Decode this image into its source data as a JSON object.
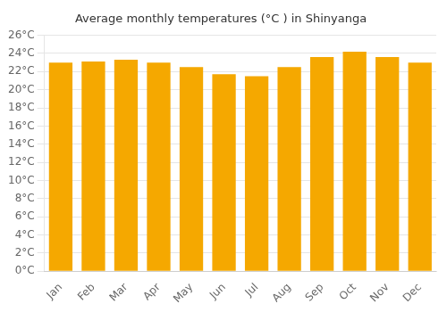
{
  "chart_data": {
    "type": "bar",
    "title": "Average monthly temperatures (°C ) in Shinyanga",
    "categories": [
      "Jan",
      "Feb",
      "Mar",
      "Apr",
      "May",
      "Jun",
      "Jul",
      "Aug",
      "Sep",
      "Oct",
      "Nov",
      "Dec"
    ],
    "values": [
      23.0,
      23.1,
      23.3,
      23.0,
      22.5,
      21.7,
      21.5,
      22.5,
      23.6,
      24.2,
      23.6,
      23.0
    ],
    "color": "#F5A800",
    "ylim": [
      0,
      26
    ],
    "yticks": [
      {
        "value": 0,
        "label": "0°C"
      },
      {
        "value": 2,
        "label": "2°C"
      },
      {
        "value": 4,
        "label": "4°C"
      },
      {
        "value": 6,
        "label": "6°C"
      },
      {
        "value": 8,
        "label": "8°C"
      },
      {
        "value": 10,
        "label": "10°C"
      },
      {
        "value": 12,
        "label": "12°C"
      },
      {
        "value": 14,
        "label": "14°C"
      },
      {
        "value": 16,
        "label": "16°C"
      },
      {
        "value": 18,
        "label": "18°C"
      },
      {
        "value": 20,
        "label": "20°C"
      },
      {
        "value": 22,
        "label": "22°C"
      },
      {
        "value": 24,
        "label": "24°C"
      },
      {
        "value": 26,
        "label": "26°C"
      }
    ],
    "grid": true
  }
}
